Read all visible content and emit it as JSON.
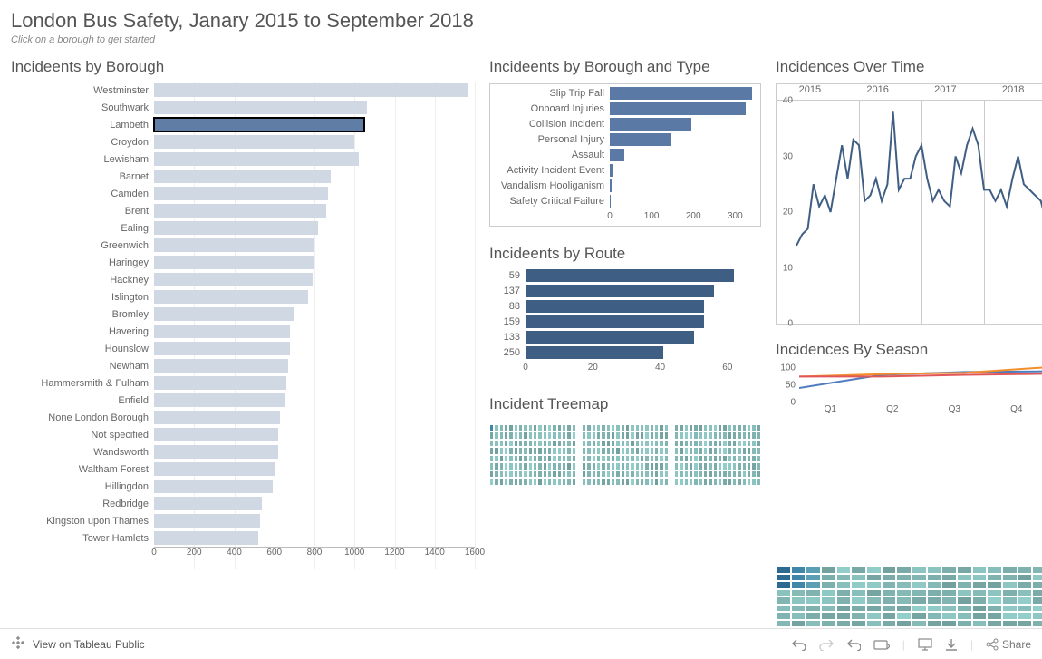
{
  "page": {
    "title": "London Bus Safety, Janary 2015 to September 2018",
    "subtitle": "Click on a borough to get started"
  },
  "footer": {
    "view_on": "View on Tableau Public",
    "share": "Share"
  },
  "borough_chart": {
    "title": "Incideents by Borough",
    "type": "bar-horizontal",
    "bar_color": "#cfd8e3",
    "highlight_color": "#5f7da5",
    "highlight_border": "#000000",
    "axis_color": "#bbbbbb",
    "grid_color": "#eeeeee",
    "xlim_max": 1600,
    "xtick_step": 200,
    "xticks": [
      0,
      200,
      400,
      600,
      800,
      1000,
      1200,
      1400,
      1600
    ],
    "highlighted": "Lambeth",
    "items": [
      {
        "label": "Westminster",
        "value": 1570
      },
      {
        "label": "Southwark",
        "value": 1060
      },
      {
        "label": "Lambeth",
        "value": 1050
      },
      {
        "label": "Croydon",
        "value": 1000
      },
      {
        "label": "Lewisham",
        "value": 1020
      },
      {
        "label": "Barnet",
        "value": 880
      },
      {
        "label": "Camden",
        "value": 870
      },
      {
        "label": "Brent",
        "value": 860
      },
      {
        "label": "Ealing",
        "value": 820
      },
      {
        "label": "Greenwich",
        "value": 800
      },
      {
        "label": "Haringey",
        "value": 800
      },
      {
        "label": "Hackney",
        "value": 790
      },
      {
        "label": "Islington",
        "value": 770
      },
      {
        "label": "Bromley",
        "value": 700
      },
      {
        "label": "Havering",
        "value": 680
      },
      {
        "label": "Hounslow",
        "value": 680
      },
      {
        "label": "Newham",
        "value": 670
      },
      {
        "label": "Hammersmith & Fulham",
        "value": 660
      },
      {
        "label": "Enfield",
        "value": 650
      },
      {
        "label": "None London Borough",
        "value": 630
      },
      {
        "label": "Not specified",
        "value": 620
      },
      {
        "label": "Wandsworth",
        "value": 620
      },
      {
        "label": "Waltham Forest",
        "value": 600
      },
      {
        "label": "Hillingdon",
        "value": 590
      },
      {
        "label": "Redbridge",
        "value": 540
      },
      {
        "label": "Kingston upon Thames",
        "value": 530
      },
      {
        "label": "Tower Hamlets",
        "value": 520
      }
    ]
  },
  "type_chart": {
    "title": "Incideents by Borough and Type",
    "type": "bar-horizontal",
    "bar_color": "#5a7aa5",
    "xlim_max": 360,
    "xticks": [
      0,
      100,
      200,
      300
    ],
    "framed": true,
    "items": [
      {
        "label": "Slip Trip Fall",
        "value": 340
      },
      {
        "label": "Onboard Injuries",
        "value": 325
      },
      {
        "label": "Collision Incident",
        "value": 195
      },
      {
        "label": "Personal Injury",
        "value": 145
      },
      {
        "label": "Assault",
        "value": 35
      },
      {
        "label": "Activity Incident Event",
        "value": 8
      },
      {
        "label": "Vandalism Hooliganism",
        "value": 5
      },
      {
        "label": "Safety Critical Failure",
        "value": 3
      }
    ]
  },
  "route_chart": {
    "title": "Incideents by Route",
    "type": "bar-horizontal",
    "bar_color": "#3f5e84",
    "xlim_max": 70,
    "xticks": [
      0,
      20,
      40,
      60
    ],
    "items": [
      {
        "label": "59",
        "value": 62
      },
      {
        "label": "137",
        "value": 56
      },
      {
        "label": "88",
        "value": 53
      },
      {
        "label": "159",
        "value": 53
      },
      {
        "label": "133",
        "value": 50
      },
      {
        "label": "250",
        "value": 41
      }
    ]
  },
  "time_chart": {
    "title": "Incidences Over Time",
    "type": "line",
    "line_color": "#3f5e84",
    "line_width": 2,
    "ylim": [
      0,
      40
    ],
    "ytick_step": 10,
    "yticks": [
      0,
      10,
      20,
      30,
      40
    ],
    "years": [
      "2015",
      "2016",
      "2017",
      "2018"
    ],
    "values": [
      14,
      16,
      17,
      25,
      21,
      23,
      20,
      26,
      32,
      26,
      33,
      32,
      22,
      23,
      26,
      22,
      25,
      38,
      24,
      26,
      26,
      30,
      32,
      26,
      22,
      24,
      22,
      21,
      30,
      27,
      32,
      35,
      32,
      24,
      24,
      22,
      24,
      21,
      26,
      30,
      25,
      24,
      23,
      22,
      18
    ]
  },
  "season_chart": {
    "title": "Incidences By Season",
    "type": "line-multi",
    "ylim": [
      0,
      110
    ],
    "yticks": [
      0,
      50,
      100
    ],
    "quarters": [
      "Q1",
      "Q2",
      "Q3",
      "Q4"
    ],
    "series": [
      {
        "color": "#4f7cbf",
        "values": [
          42,
          80,
          88,
          90
        ]
      },
      {
        "color": "#f28e2b",
        "values": [
          75,
          82,
          86,
          102
        ]
      },
      {
        "color": "#e15759",
        "values": [
          75,
          75,
          80,
          83
        ]
      }
    ]
  },
  "treemap": {
    "title": "Incident Treemap",
    "blocks": 4,
    "base_color": "#86bcb9",
    "accent_colors": [
      "#2c6a92",
      "#3f86a8",
      "#5a9fb4"
    ],
    "cells_per_block": 120,
    "accent_in_block": 3
  }
}
